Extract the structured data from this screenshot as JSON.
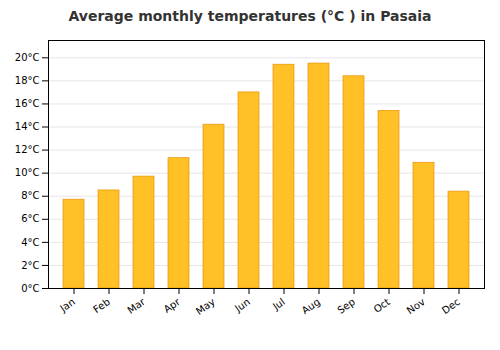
{
  "chart_data": {
    "type": "bar",
    "title": "Average monthly temperatures (°C ) in Pasaia",
    "categories": [
      "Jan",
      "Feb",
      "Mar",
      "Apr",
      "May",
      "Jun",
      "Jul",
      "Aug",
      "Sep",
      "Oct",
      "Nov",
      "Dec"
    ],
    "values": [
      7.7,
      8.5,
      9.7,
      11.3,
      14.2,
      17.0,
      19.4,
      19.5,
      18.4,
      15.4,
      10.9,
      8.4
    ],
    "color": "#FFC125",
    "ylim": [
      0,
      21.5
    ],
    "yticks": [
      {
        "value": 0,
        "label": "0°C"
      },
      {
        "value": 2,
        "label": "2°C"
      },
      {
        "value": 4,
        "label": "4°C"
      },
      {
        "value": 6,
        "label": "6°C"
      },
      {
        "value": 8,
        "label": "8°C"
      },
      {
        "value": 10,
        "label": "10°C"
      },
      {
        "value": 12,
        "label": "12°C"
      },
      {
        "value": 14,
        "label": "14°C"
      },
      {
        "value": 16,
        "label": "16°C"
      },
      {
        "value": 18,
        "label": "18°C"
      },
      {
        "value": 20,
        "label": "20°C"
      }
    ],
    "grid": true
  }
}
